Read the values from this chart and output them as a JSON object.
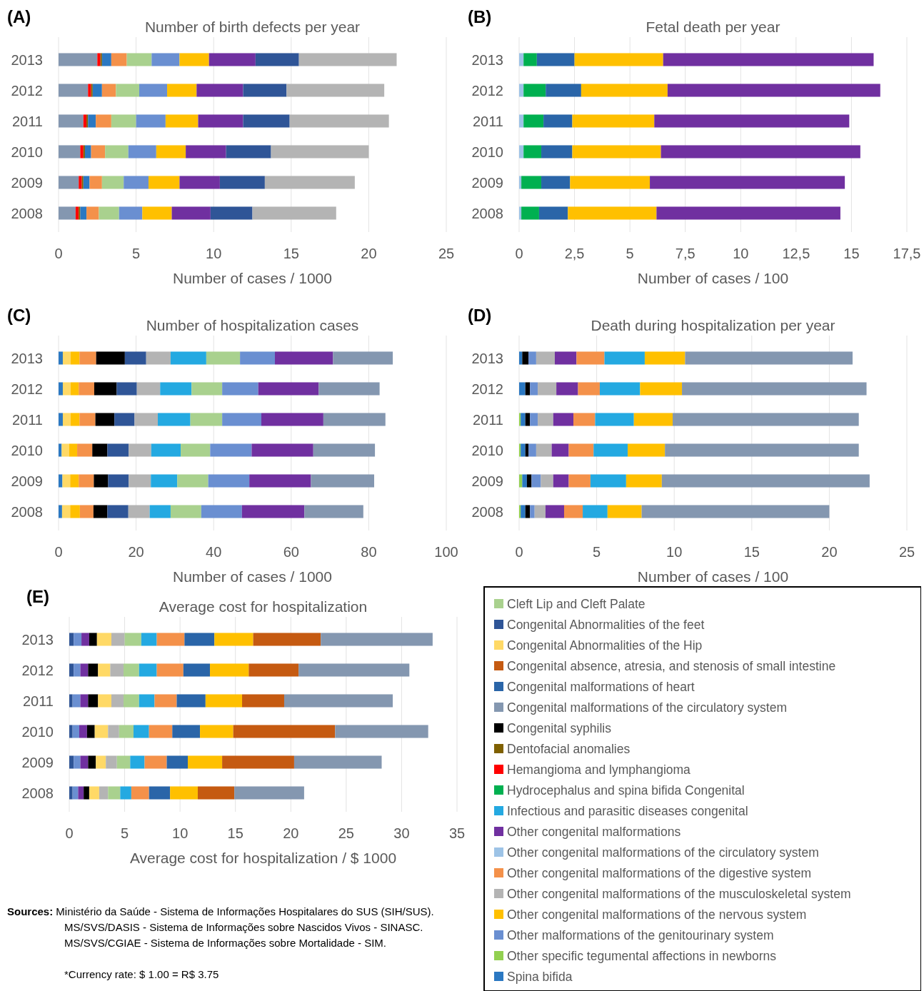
{
  "chart_data": [
    {
      "type": "bar",
      "orientation": "horizontal",
      "stacked": true,
      "grid": "x",
      "legend": "bottom right",
      "title": "Number of birth defects per year",
      "xlabel": "Number of cases / 1000",
      "annotations": [
        "(A)"
      ],
      "categories": [
        "2013",
        "2012",
        "2011",
        "2010",
        "2009",
        "2008"
      ],
      "xlim": [
        0,
        25
      ],
      "xticks": [
        0,
        5,
        10,
        15,
        20,
        25
      ],
      "series": [
        {
          "name": "Congenital malformations of the circulatory system",
          "color": "#8497b0",
          "values": [
            2.5,
            1.9,
            1.6,
            1.4,
            1.3,
            1.1
          ]
        },
        {
          "name": "Hemangioma and lymphangioma",
          "color": "#ff0000",
          "values": [
            0.2,
            0.2,
            0.2,
            0.2,
            0.2,
            0.2
          ]
        },
        {
          "name": "Dentofacial anomalies",
          "color": "#7f6000",
          "values": [
            0.1,
            0.1,
            0.1,
            0.1,
            0.1,
            0.1
          ]
        },
        {
          "name": "Spina bifida",
          "color": "#2b78c2",
          "values": [
            0.6,
            0.6,
            0.5,
            0.4,
            0.4,
            0.4
          ]
        },
        {
          "name": "Other congenital malformations of the digestive system",
          "color": "#f4914a",
          "values": [
            1.0,
            0.9,
            1.0,
            0.9,
            0.8,
            0.8
          ]
        },
        {
          "name": "Cleft Lip and Cleft Palate",
          "color": "#a9d18e",
          "values": [
            1.6,
            1.5,
            1.6,
            1.5,
            1.4,
            1.3
          ]
        },
        {
          "name": "Other malformations of the genitourinary system",
          "color": "#6a8fd1",
          "values": [
            1.8,
            1.8,
            1.9,
            1.8,
            1.6,
            1.5
          ]
        },
        {
          "name": "Other congenital malformations of the nervous system",
          "color": "#ffc000",
          "values": [
            1.9,
            1.9,
            2.1,
            1.9,
            2.0,
            1.9
          ]
        },
        {
          "name": "Other congenital malformations",
          "color": "#7030a0",
          "values": [
            3.0,
            3.0,
            2.9,
            2.6,
            2.6,
            2.5
          ]
        },
        {
          "name": "Congenital Abnormalities of the feet",
          "color": "#2f5597",
          "values": [
            2.8,
            2.8,
            3.0,
            2.9,
            2.9,
            2.7
          ]
        },
        {
          "name": "Other congenital malformations of the musculoskeletal system",
          "color": "#b4b4b4",
          "values": [
            6.3,
            6.3,
            6.4,
            6.3,
            5.8,
            5.4
          ]
        }
      ]
    },
    {
      "type": "bar",
      "orientation": "horizontal",
      "stacked": true,
      "grid": "x",
      "legend": "bottom left",
      "title": "Fetal death per year",
      "xlabel": "Number of cases / 100",
      "annotations": [
        "(B)"
      ],
      "categories": [
        "2013",
        "2012",
        "2011",
        "2010",
        "2009",
        "2008"
      ],
      "xlim": [
        0,
        17.5
      ],
      "xticks": [
        0,
        {
          "value": 2.5,
          "label": "2,5"
        },
        5,
        {
          "value": 7.5,
          "label": "7,5"
        },
        10,
        {
          "value": 12.5,
          "label": "12,5"
        },
        15,
        {
          "value": 17.5,
          "label": "17,5"
        }
      ],
      "series": [
        {
          "name": "Other congenital malformations of the circulatory system",
          "color": "#9dc3e6",
          "values": [
            0.2,
            0.2,
            0.2,
            0.2,
            0.1,
            0.1
          ]
        },
        {
          "name": "Hydrocephalus and spina bifida Congenital",
          "color": "#00b050",
          "values": [
            0.6,
            1.0,
            0.9,
            0.8,
            0.9,
            0.8
          ]
        },
        {
          "name": "Congenital malformations of heart",
          "color": "#2a65a8",
          "values": [
            1.7,
            1.6,
            1.3,
            1.4,
            1.3,
            1.3
          ]
        },
        {
          "name": "Other congenital malformations of the nervous system",
          "color": "#ffc000",
          "values": [
            4.0,
            3.9,
            3.7,
            4.0,
            3.6,
            4.0
          ]
        },
        {
          "name": "Other congenital malformations",
          "color": "#7030a0",
          "values": [
            9.5,
            9.6,
            8.8,
            9.0,
            8.8,
            8.3
          ]
        }
      ]
    },
    {
      "type": "bar",
      "orientation": "horizontal",
      "stacked": true,
      "grid": "x",
      "legend": "bottom right",
      "title": "Number of hospitalization cases",
      "xlabel": "Number of cases / 1000",
      "annotations": [
        "(C)"
      ],
      "categories": [
        "2013",
        "2012",
        "2011",
        "2010",
        "2009",
        "2008"
      ],
      "xlim": [
        0,
        100
      ],
      "xticks": [
        0,
        20,
        40,
        60,
        80,
        100
      ],
      "series": [
        {
          "name": "Spina bifida",
          "color": "#2b78c2",
          "values": [
            1.1,
            1.1,
            1.1,
            0.8,
            1.0,
            0.9
          ]
        },
        {
          "name": "Congenital Abnormalities of the Hip",
          "color": "#ffd966",
          "values": [
            2.0,
            2.0,
            2.0,
            1.9,
            2.0,
            2.1
          ]
        },
        {
          "name": "Other congenital malformations of the nervous system",
          "color": "#ffc000",
          "values": [
            2.3,
            2.1,
            2.3,
            2.1,
            2.2,
            2.5
          ]
        },
        {
          "name": "Other congenital malformations of the digestive system",
          "color": "#f4914a",
          "values": [
            4.3,
            4.0,
            4.1,
            3.9,
            3.9,
            3.5
          ]
        },
        {
          "name": "Congenital syphilis",
          "color": "#000000",
          "values": [
            7.4,
            5.8,
            4.9,
            3.9,
            3.7,
            3.6
          ]
        },
        {
          "name": "Congenital Abnormalities of the feet",
          "color": "#2f5597",
          "values": [
            5.5,
            5.2,
            5.2,
            5.5,
            5.3,
            5.4
          ]
        },
        {
          "name": "Other congenital malformations of the musculoskeletal system",
          "color": "#b4b4b4",
          "values": [
            6.3,
            6.0,
            6.0,
            5.8,
            5.7,
            5.5
          ]
        },
        {
          "name": "Infectious and parasitic diseases congenital",
          "color": "#24a9e1",
          "values": [
            9.2,
            8.1,
            8.4,
            7.6,
            6.8,
            5.4
          ]
        },
        {
          "name": "Cleft Lip and Cleft Palate",
          "color": "#a9d18e",
          "values": [
            8.7,
            7.9,
            8.2,
            7.6,
            8.0,
            7.9
          ]
        },
        {
          "name": "Other malformations of the genitourinary system",
          "color": "#6a8fd1",
          "values": [
            9.0,
            9.3,
            10.1,
            10.7,
            10.6,
            10.5
          ]
        },
        {
          "name": "Other congenital malformations",
          "color": "#7030a0",
          "values": [
            15.0,
            15.6,
            16.0,
            15.9,
            15.9,
            16.1
          ]
        },
        {
          "name": "Congenital malformations of the circulatory system",
          "color": "#8497b0",
          "values": [
            15.4,
            15.7,
            16.0,
            15.9,
            16.3,
            15.2
          ]
        }
      ]
    },
    {
      "type": "bar",
      "orientation": "horizontal",
      "stacked": true,
      "grid": "x",
      "legend": "bottom left",
      "title": "Death during hospitalization per year",
      "xlabel": "Number of cases / 100",
      "annotations": [
        "(D)"
      ],
      "categories": [
        "2013",
        "2012",
        "2011",
        "2010",
        "2009",
        "2008"
      ],
      "xlim": [
        0,
        25
      ],
      "xticks": [
        0,
        5,
        10,
        15,
        20,
        25
      ],
      "series": [
        {
          "name": "Other specific tegumental affections in newborns",
          "color": "#92d050",
          "values": [
            null,
            null,
            0.1,
            0.1,
            0.2,
            0.1
          ]
        },
        {
          "name": "Spina bifida",
          "color": "#2b78c2",
          "values": [
            0.2,
            0.4,
            0.3,
            0.3,
            0.3,
            0.3
          ]
        },
        {
          "name": "Congenital syphilis",
          "color": "#000000",
          "values": [
            0.4,
            0.3,
            0.3,
            0.2,
            0.3,
            0.3
          ]
        },
        {
          "name": "Other malformations of the genitourinary system",
          "color": "#6a8fd1",
          "values": [
            0.5,
            0.5,
            0.5,
            0.5,
            0.6,
            0.3
          ]
        },
        {
          "name": "Other congenital malformations of the musculoskeletal system",
          "color": "#b4b4b4",
          "values": [
            1.2,
            1.2,
            1.0,
            1.0,
            0.8,
            0.7
          ]
        },
        {
          "name": "Other congenital malformations",
          "color": "#7030a0",
          "values": [
            1.4,
            1.4,
            1.3,
            1.1,
            1.0,
            1.2
          ]
        },
        {
          "name": "Other congenital malformations of the digestive system",
          "color": "#f4914a",
          "values": [
            1.8,
            1.4,
            1.4,
            1.6,
            1.4,
            1.2
          ]
        },
        {
          "name": "Infectious and parasitic diseases congenital",
          "color": "#24a9e1",
          "values": [
            2.6,
            2.6,
            2.5,
            2.2,
            2.3,
            1.6
          ]
        },
        {
          "name": "Other congenital malformations of the nervous system",
          "color": "#ffc000",
          "values": [
            2.6,
            2.7,
            2.5,
            2.4,
            2.3,
            2.2
          ]
        },
        {
          "name": "Congenital malformations of the circulatory system",
          "color": "#8497b0",
          "values": [
            10.8,
            11.9,
            12.0,
            12.5,
            13.4,
            12.1
          ]
        }
      ]
    },
    {
      "type": "bar",
      "orientation": "horizontal",
      "stacked": true,
      "grid": "x",
      "legend": "right",
      "title": "Average cost for hospitalization",
      "xlabel": "Average cost for hospitalization / $ 1000",
      "annotations": [
        "(E)",
        "Sources: Ministério da Saúde - Sistema de Informações Hospitalares do SUS (SIH/SUS).",
        "MS/SVS/DASIS - Sistema de Informações sobre Nascidos Vivos - SINASC.",
        "MS/SVS/CGIAE - Sistema de Informações sobre Mortalidade - SIM.",
        "*Currency rate: $ 1.00 = R$ 3.75"
      ],
      "categories": [
        "2013",
        "2012",
        "2011",
        "2010",
        "2009",
        "2008"
      ],
      "xlim": [
        0,
        35
      ],
      "xticks": [
        0,
        5,
        10,
        15,
        20,
        25,
        30,
        35
      ],
      "series": [
        {
          "name": "Congenital Abnormalities of the feet",
          "color": "#2f5597",
          "values": [
            0.4,
            0.4,
            0.3,
            0.3,
            0.4,
            0.3
          ]
        },
        {
          "name": "Other malformations of the genitourinary system",
          "color": "#6a8fd1",
          "values": [
            0.7,
            0.6,
            0.7,
            0.6,
            0.6,
            0.5
          ]
        },
        {
          "name": "Other congenital malformations",
          "color": "#7030a0",
          "values": [
            0.7,
            0.7,
            0.7,
            0.7,
            0.7,
            0.5
          ]
        },
        {
          "name": "Congenital syphilis",
          "color": "#000000",
          "values": [
            0.7,
            0.9,
            0.9,
            0.7,
            0.7,
            0.5
          ]
        },
        {
          "name": "Congenital Abnormalities of the Hip",
          "color": "#ffd966",
          "values": [
            1.3,
            1.1,
            1.2,
            1.2,
            0.9,
            0.9
          ]
        },
        {
          "name": "Other congenital malformations of the musculoskeletal system",
          "color": "#b4b4b4",
          "values": [
            1.2,
            1.2,
            1.1,
            1.0,
            1.0,
            0.8
          ]
        },
        {
          "name": "Cleft Lip and Cleft Palate",
          "color": "#a9d18e",
          "values": [
            1.5,
            1.4,
            1.4,
            1.3,
            1.2,
            1.1
          ]
        },
        {
          "name": "Infectious and parasitic diseases congenital",
          "color": "#24a9e1",
          "values": [
            1.4,
            1.6,
            1.4,
            1.4,
            1.3,
            1.0
          ]
        },
        {
          "name": "Other congenital malformations of the digestive system",
          "color": "#f4914a",
          "values": [
            2.5,
            2.4,
            2.0,
            2.1,
            2.0,
            1.6
          ]
        },
        {
          "name": "Congenital malformations of heart",
          "color": "#2a65a8",
          "values": [
            2.7,
            2.4,
            2.6,
            2.5,
            1.9,
            1.9
          ]
        },
        {
          "name": "Other congenital malformations of the nervous system",
          "color": "#ffc000",
          "values": [
            3.5,
            3.5,
            3.3,
            3.0,
            3.1,
            2.5
          ]
        },
        {
          "name": "Congenital absence, atresia, and stenosis of small intestine",
          "color": "#c55a11",
          "values": [
            6.1,
            4.5,
            3.8,
            9.2,
            6.5,
            3.3
          ]
        },
        {
          "name": "Congenital malformations of the circulatory system",
          "color": "#8497b0",
          "values": [
            10.1,
            10.0,
            9.8,
            8.4,
            7.9,
            6.3
          ]
        }
      ]
    }
  ]
}
